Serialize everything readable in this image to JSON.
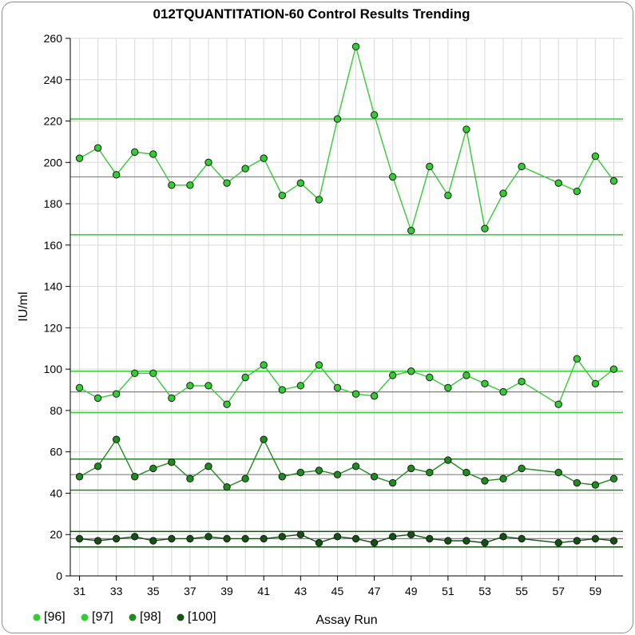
{
  "chart_data": {
    "type": "line",
    "title": "012TQUANTITATION-60 Control Results Trending",
    "xlabel": "Assay Run",
    "ylabel": "IU/ml",
    "xlim": [
      30.5,
      60.5
    ],
    "ylim": [
      0,
      260
    ],
    "yticks": [
      0,
      20,
      40,
      60,
      80,
      100,
      120,
      140,
      160,
      180,
      200,
      220,
      240,
      260
    ],
    "xticks": [
      31,
      33,
      35,
      37,
      39,
      41,
      43,
      45,
      47,
      49,
      51,
      53,
      55,
      57,
      59
    ],
    "grid": true,
    "legend_placement": "bottom-left",
    "series": [
      {
        "name": "[96]",
        "color": "#33cc33",
        "mean": 193,
        "limits": [
          165,
          221
        ],
        "x": [
          31,
          32,
          33,
          34,
          35,
          36,
          37,
          38,
          39,
          40,
          41,
          42,
          43,
          44,
          45,
          46,
          47,
          48,
          49,
          50,
          51,
          52,
          53,
          54,
          55,
          57,
          58,
          59,
          60
        ],
        "values": [
          202,
          207,
          194,
          205,
          204,
          189,
          189,
          200,
          190,
          197,
          202,
          184,
          190,
          182,
          221,
          256,
          223,
          193,
          167,
          198,
          184,
          216,
          168,
          185,
          198,
          190,
          186,
          203,
          191
        ]
      },
      {
        "name": "[97]",
        "color": "#33cc33",
        "mean": 89,
        "limits": [
          79,
          99
        ],
        "x": [
          31,
          32,
          33,
          34,
          35,
          36,
          37,
          38,
          39,
          40,
          41,
          42,
          43,
          44,
          45,
          46,
          47,
          48,
          49,
          50,
          51,
          52,
          53,
          54,
          55,
          57,
          58,
          59,
          60
        ],
        "values": [
          91,
          86,
          88,
          98,
          98,
          86,
          92,
          92,
          83,
          96,
          102,
          90,
          92,
          102,
          91,
          88,
          87,
          97,
          99,
          96,
          91,
          97,
          93,
          89,
          94,
          83,
          105,
          93,
          100
        ]
      },
      {
        "name": "[98]",
        "color": "#1e8c1e",
        "mean": 49,
        "limits": [
          41.5,
          56.5
        ],
        "x": [
          31,
          32,
          33,
          34,
          35,
          36,
          37,
          38,
          39,
          40,
          41,
          42,
          43,
          44,
          45,
          46,
          47,
          48,
          49,
          50,
          51,
          52,
          53,
          54,
          55,
          57,
          58,
          59,
          60
        ],
        "values": [
          48,
          53,
          66,
          48,
          52,
          55,
          47,
          53,
          43,
          47,
          66,
          48,
          50,
          51,
          49,
          53,
          48,
          45,
          52,
          50,
          56,
          50,
          46,
          47,
          52,
          50,
          45,
          44,
          47
        ]
      },
      {
        "name": "[100]",
        "color": "#145214",
        "mean": 18,
        "limits": [
          14,
          21.5
        ],
        "x": [
          31,
          32,
          33,
          34,
          35,
          36,
          37,
          38,
          39,
          40,
          41,
          42,
          43,
          44,
          45,
          46,
          47,
          48,
          49,
          50,
          51,
          52,
          53,
          54,
          55,
          57,
          58,
          59,
          60
        ],
        "values": [
          18,
          17,
          18,
          19,
          17,
          18,
          18,
          19,
          18,
          18,
          18,
          19,
          20,
          16,
          19,
          18,
          16,
          19,
          20,
          18,
          17,
          17,
          16,
          19,
          18,
          16,
          17,
          18,
          17
        ]
      }
    ]
  }
}
